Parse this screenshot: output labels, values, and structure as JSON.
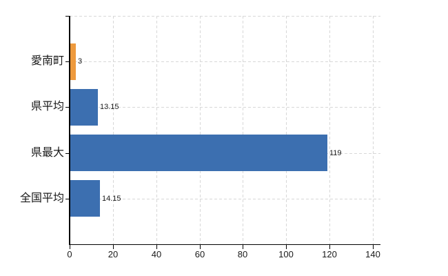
{
  "chart_data": {
    "type": "bar",
    "orientation": "horizontal",
    "title": "",
    "xlabel": "",
    "ylabel": "",
    "categories": [
      "愛南町",
      "県平均",
      "県最大",
      "全国平均"
    ],
    "values": [
      3,
      13.15,
      119,
      14.15
    ],
    "value_labels": [
      "3",
      "13.15",
      "119",
      "14.15"
    ],
    "bar_colors": [
      "#ee9a3d",
      "#3c6fb0",
      "#3c6fb0",
      "#3c6fb0"
    ],
    "xlim": [
      0,
      140
    ],
    "x_ticks": [
      0,
      20,
      40,
      60,
      80,
      100,
      120,
      140
    ],
    "x_tick_labels": [
      "0",
      "20",
      "40",
      "60",
      "80",
      "100",
      "120",
      "140"
    ],
    "grid": "dashed",
    "legend": "none",
    "background": "#ffffff"
  },
  "colors": {
    "axis": "#000000",
    "grid": "#d7d7d7",
    "text": "#1a1a1a",
    "bar_highlight": "#ee9a3d",
    "bar_default": "#3c6fb0"
  }
}
